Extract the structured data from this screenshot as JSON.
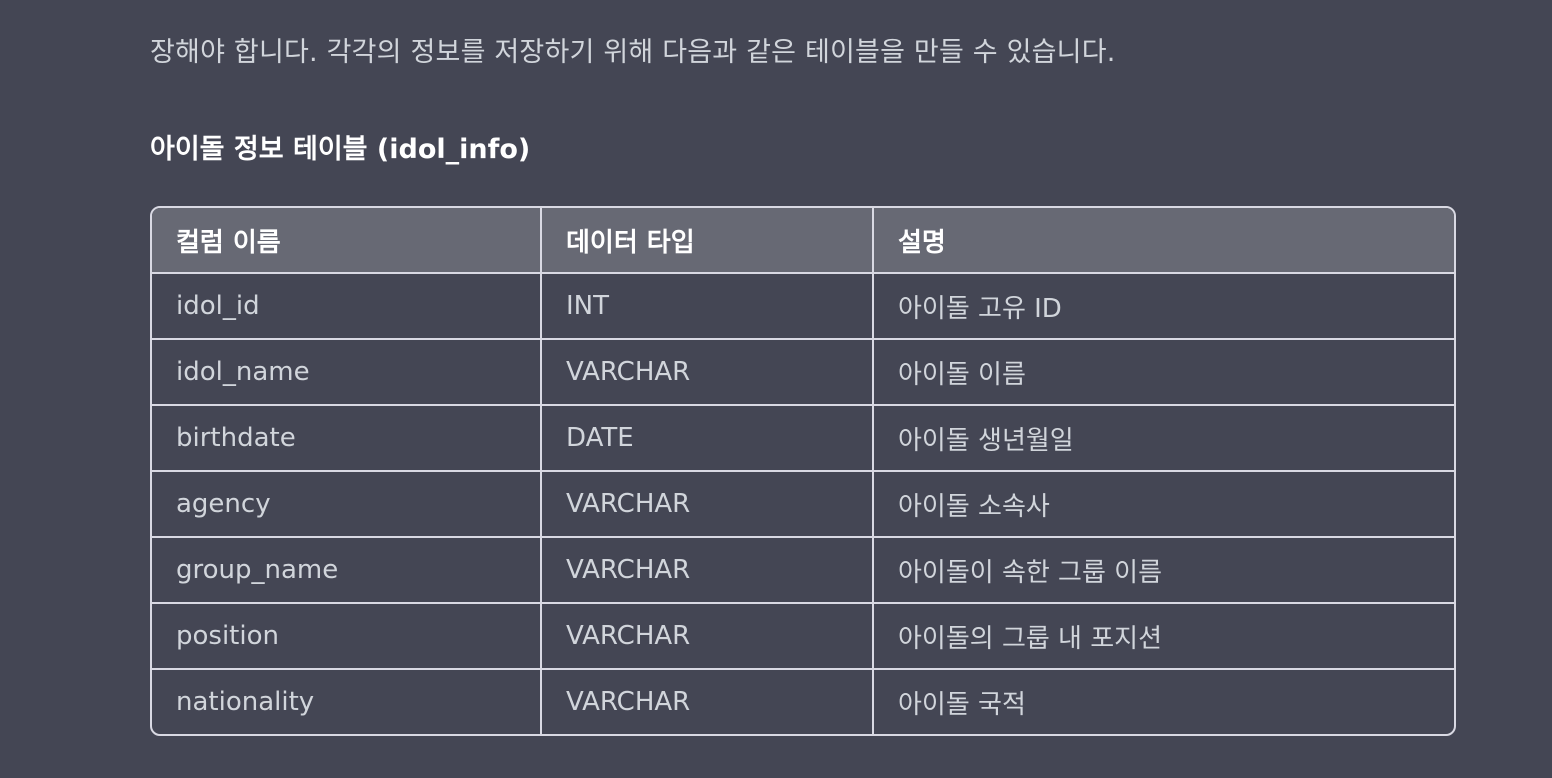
{
  "intro_text": "장해야 합니다. 각각의 정보를 저장하기 위해 다음과 같은 테이블을 만들 수 있습니다.",
  "section_title": "아이돌 정보 테이블 (idol_info)",
  "table": {
    "headers": [
      "컬럼 이름",
      "데이터 타입",
      "설명"
    ],
    "rows": [
      [
        "idol_id",
        "INT",
        "아이돌 고유 ID"
      ],
      [
        "idol_name",
        "VARCHAR",
        "아이돌 이름"
      ],
      [
        "birthdate",
        "DATE",
        "아이돌 생년월일"
      ],
      [
        "agency",
        "VARCHAR",
        "아이돌 소속사"
      ],
      [
        "group_name",
        "VARCHAR",
        "아이돌이 속한 그룹 이름"
      ],
      [
        "position",
        "VARCHAR",
        "아이돌의 그룹 내 포지션"
      ],
      [
        "nationality",
        "VARCHAR",
        "아이돌 국적"
      ]
    ]
  }
}
